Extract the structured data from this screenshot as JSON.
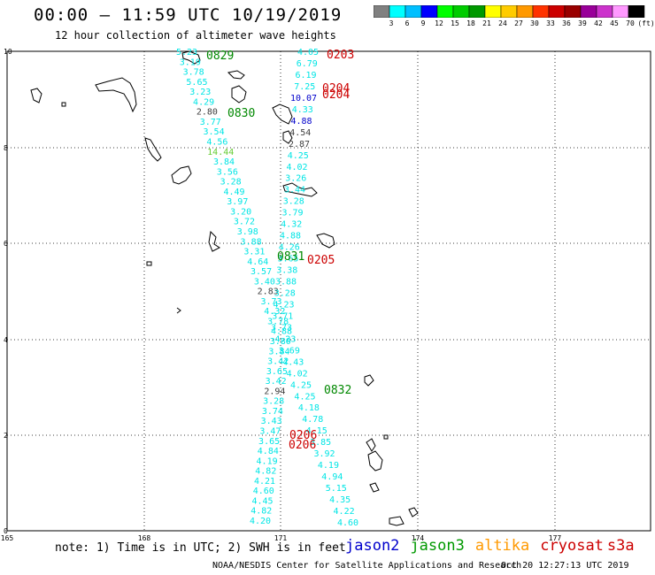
{
  "header": {
    "title": "00:00 – 11:59 UTC 10/19/2019",
    "subtitle": "12 hour collection of altimeter wave heights"
  },
  "colorbar": {
    "colors": [
      "#808080",
      "#00ffff",
      "#00bfff",
      "#0000ff",
      "#00ff00",
      "#00cc00",
      "#009900",
      "#ffff00",
      "#ffcc00",
      "#ff9900",
      "#ff3300",
      "#cc0000",
      "#990000",
      "#990099",
      "#cc33cc",
      "#ff99ff",
      "#000000"
    ],
    "labels": [
      "3",
      "6",
      "9",
      "12",
      "15",
      "18",
      "21",
      "24",
      "27",
      "30",
      "33",
      "36",
      "39",
      "42",
      "45",
      "70",
      "(ft)"
    ]
  },
  "axes": {
    "lon_ticks": [
      "165",
      "168",
      "171",
      "174",
      "177"
    ],
    "lat_ticks": [
      "0",
      "2",
      "4",
      "6",
      "8",
      "10"
    ]
  },
  "tracks": [
    {
      "color": "#00e5e5",
      "values": [
        "5.23",
        "3.19",
        "3.78",
        "5.65",
        "3.23",
        "4.29",
        "2.80",
        "3.77",
        "3.54",
        "4.56",
        "14.44",
        "3.84",
        "3.56",
        "3.28",
        "4.49",
        "3.97",
        "3.20",
        "3.72",
        "3.98",
        "3.88",
        "3.31",
        "4.64",
        "3.57",
        "3.40",
        "2.83",
        "3.73",
        "4.32",
        "3.78",
        "4.88",
        "3.80",
        "3.84",
        "3.42",
        "3.65",
        "3.42",
        "2.94",
        "3.28",
        "3.74",
        "3.43",
        "3.47",
        "3.65",
        "4.84",
        "4.19",
        "4.82",
        "4.21",
        "4.60",
        "4.45",
        "4.82",
        "4.20"
      ],
      "special": {
        "6": "#404040",
        "10": "#66cc33",
        "24": "#404040",
        "34": "#404040"
      }
    },
    {
      "color": "#00e5e5",
      "values": [
        "4.05",
        "6.79",
        "6.19",
        "7.25",
        "10.07",
        "4.33",
        "4.88",
        "4.54",
        "2.87",
        "4.25",
        "4.02",
        "3.26",
        "3.44",
        "3.28",
        "3.79",
        "4.32",
        "4.88",
        "4.26",
        "3.65",
        "3.38",
        "3.88",
        "3.28",
        "4.23",
        "3.71",
        "3.73",
        "4.23",
        "3.69",
        "4.43",
        "4.02",
        "4.25",
        "4.25",
        "4.18",
        "4.78",
        "4.15",
        "3.85",
        "3.92",
        "4.19",
        "4.94",
        "5.15",
        "4.35",
        "4.22",
        "4.60"
      ],
      "special": {
        "4": "#0000cc",
        "6": "#0000cc",
        "7": "#404040",
        "8": "#404040"
      }
    }
  ],
  "time_labels": [
    {
      "text": "0829",
      "color": "#008800"
    },
    {
      "text": "0830",
      "color": "#008800"
    },
    {
      "text": "0831",
      "color": "#008800"
    },
    {
      "text": "0832",
      "color": "#008800"
    },
    {
      "text": "0203",
      "color": "#cc0000"
    },
    {
      "text": "0204",
      "color": "#cc0000"
    },
    {
      "text": "0204",
      "color": "#cc0000"
    },
    {
      "text": "0205",
      "color": "#cc0000"
    },
    {
      "text": "0206",
      "color": "#cc0000"
    },
    {
      "text": "0206",
      "color": "#cc0000"
    }
  ],
  "note": "note: 1) Time is in UTC; 2) SWH is in feet",
  "satellites": [
    {
      "name": "jason2",
      "color": "#0000cc"
    },
    {
      "name": "jason3",
      "color": "#009900"
    },
    {
      "name": "altika",
      "color": "#ff9900"
    },
    {
      "name": "cryosat",
      "color": "#cc0000"
    },
    {
      "name": "s3a",
      "color": "#cc0000"
    }
  ],
  "credit": "NOAA/NESDIS Center for Satellite Applications and Research",
  "credit_date": "Oct 20 12:27:13 UTC 2019"
}
